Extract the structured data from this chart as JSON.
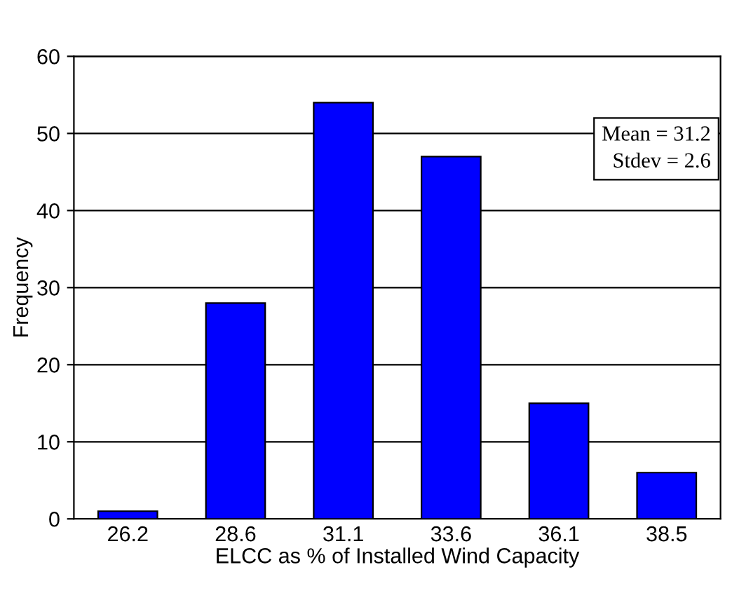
{
  "chart_data": {
    "type": "bar",
    "xlabel": "ELCC as % of Installed Wind Capacity",
    "ylabel": "Frequency",
    "categories": [
      "26.2",
      "28.6",
      "31.1",
      "33.6",
      "36.1",
      "38.5"
    ],
    "values": [
      1,
      28,
      54,
      47,
      15,
      6
    ],
    "color": "#0000ff",
    "ylim": [
      0,
      60
    ],
    "yticks": [
      0,
      10,
      20,
      30,
      40,
      50,
      60
    ],
    "grid": "y",
    "annotations": [
      "Mean = 31.2\nStdev = 2.6"
    ]
  }
}
